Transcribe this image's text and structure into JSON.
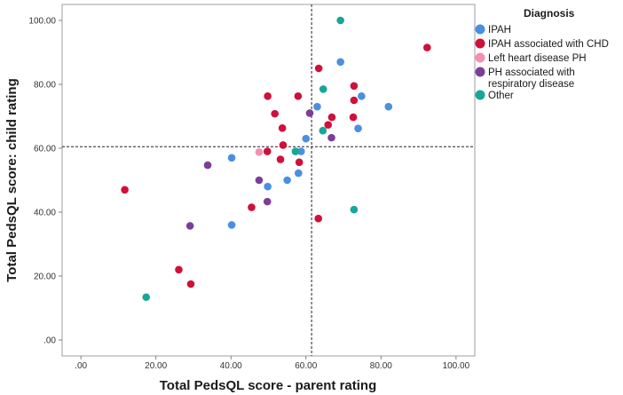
{
  "chart_data": {
    "type": "scatter",
    "xlabel": "Total PedsQL score - parent rating",
    "ylabel": "Total PedsQL score: child rating",
    "xlim": [
      -5,
      105
    ],
    "ylim": [
      -5,
      105
    ],
    "x_ticks": [
      ".00",
      "20.00",
      "40.00",
      "60.00",
      "80.00",
      "100.00"
    ],
    "y_ticks": [
      ".00",
      "20.00",
      "40.00",
      "60.00",
      "80.00",
      "100.00"
    ],
    "reference_lines": {
      "x": 61.5,
      "y": 60.5
    },
    "legend": {
      "title": "Diagnosis",
      "position": "top-right"
    },
    "series": [
      {
        "name": "IPAH",
        "color": "#4a90e2",
        "points": [
          [
            69.2,
            87.0
          ],
          [
            82.0,
            73.0
          ],
          [
            74.8,
            76.3
          ],
          [
            73.9,
            66.2
          ],
          [
            63.0,
            73.0
          ],
          [
            60.0,
            63.0
          ],
          [
            58.7,
            59.0
          ],
          [
            40.2,
            57.0
          ],
          [
            58.0,
            52.2
          ],
          [
            55.0,
            50.0
          ],
          [
            49.8,
            48.0
          ],
          [
            40.2,
            36.0
          ]
        ]
      },
      {
        "name": "IPAH associated with CHD",
        "color": "#d0103a",
        "points": [
          [
            92.3,
            91.5
          ],
          [
            63.4,
            85.0
          ],
          [
            72.8,
            79.5
          ],
          [
            49.8,
            76.3
          ],
          [
            57.9,
            76.3
          ],
          [
            72.8,
            75.0
          ],
          [
            51.7,
            70.8
          ],
          [
            66.9,
            69.7
          ],
          [
            72.6,
            69.7
          ],
          [
            65.9,
            67.3
          ],
          [
            53.7,
            66.3
          ],
          [
            53.9,
            61.0
          ],
          [
            49.7,
            59.0
          ],
          [
            53.2,
            56.5
          ],
          [
            58.2,
            55.6
          ],
          [
            11.7,
            47.0
          ],
          [
            45.5,
            41.5
          ],
          [
            63.3,
            38.0
          ],
          [
            26.1,
            22.0
          ],
          [
            29.3,
            17.5
          ]
        ]
      },
      {
        "name": "Left heart disease PH",
        "color": "#f48fb1",
        "points": [
          [
            47.5,
            58.8
          ]
        ]
      },
      {
        "name": "PH associated with respiratory disease",
        "color": "#7b3f98",
        "points": [
          [
            61.0,
            71.0
          ],
          [
            66.8,
            63.3
          ],
          [
            33.8,
            54.7
          ],
          [
            47.5,
            50.0
          ],
          [
            49.7,
            43.3
          ],
          [
            29.1,
            35.7
          ]
        ]
      },
      {
        "name": "Other",
        "color": "#17a697",
        "points": [
          [
            69.2,
            100.0
          ],
          [
            64.6,
            78.5
          ],
          [
            64.5,
            65.5
          ],
          [
            57.2,
            59.0
          ],
          [
            72.8,
            40.8
          ],
          [
            17.4,
            13.4
          ]
        ]
      }
    ]
  }
}
